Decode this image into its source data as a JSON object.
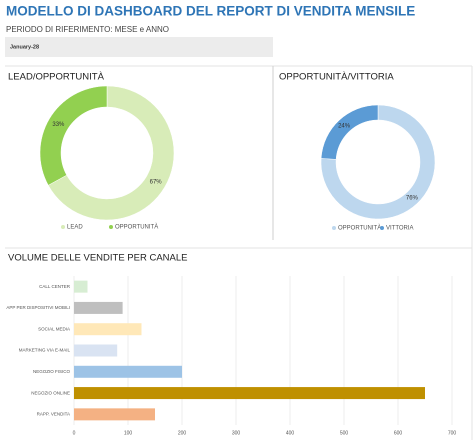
{
  "header": {
    "title": "MODELLO DI DASHBOARD DEL REPORT DI VENDITA MENSILE",
    "subtitle": "PERIODO DI RIFERIMENTO: MESE e ANNO",
    "date": "January-28"
  },
  "chart_data": [
    {
      "type": "pie",
      "title": "LEAD/OPPORTUNITÀ",
      "categories": [
        "LEAD",
        "OPPORTUNITÀ"
      ],
      "values": [
        67,
        33
      ],
      "value_labels": [
        "67%",
        "33%"
      ],
      "colors": [
        "#d8ecb8",
        "#92d050"
      ]
    },
    {
      "type": "pie",
      "title": "OPPORTUNITÀ/VITTORIA",
      "categories": [
        "OPPORTUNITÀ",
        "VITTORIA"
      ],
      "values": [
        76,
        24
      ],
      "value_labels": [
        "76%",
        "24%"
      ],
      "colors": [
        "#bdd7ee",
        "#5b9bd5"
      ]
    },
    {
      "type": "barh",
      "title": "VOLUME DELLE VENDITE PER CANALE",
      "categories": [
        "CALL CENTER",
        "APP PER DISPOSITIVI MOBILI",
        "SOCIAL MEDIA",
        "MARKETING VIA E-MAIL",
        "NEGOZIO FISICO",
        "NEGOZIO ONLINE",
        "RAPP. VENDITA"
      ],
      "values": [
        25,
        90,
        125,
        80,
        200,
        650,
        150
      ],
      "colors": [
        "#d7edd3",
        "#bfbfbf",
        "#ffe8b8",
        "#d9e3f2",
        "#9dc3e6",
        "#bf9000",
        "#f4b183"
      ],
      "xlim": [
        0,
        700
      ],
      "xticks": [
        0,
        100,
        200,
        300,
        400,
        500,
        600,
        700
      ],
      "grid": true
    }
  ]
}
